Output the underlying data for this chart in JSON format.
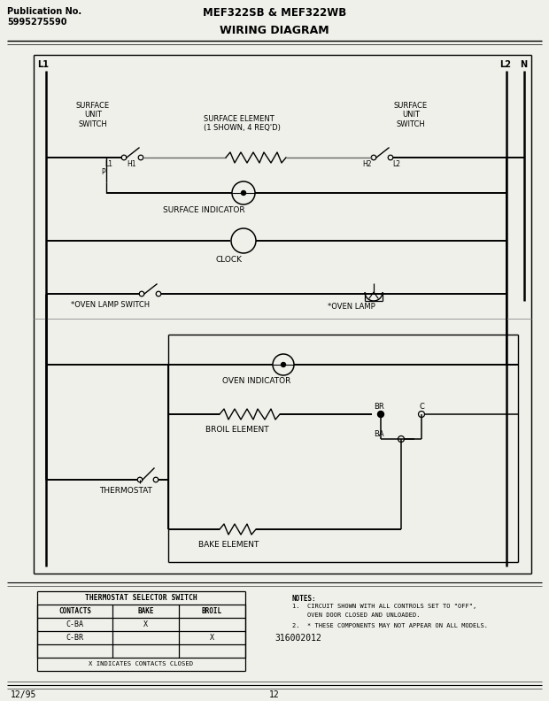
{
  "title_left": "Publication No.\n5995275590",
  "title_center": "MEF322SB & MEF322WB",
  "subtitle_center": "WIRING DIAGRAM",
  "bg_color": "#f0f0eb",
  "page_date": "12/95",
  "page_num": "12",
  "part_num": "316002012",
  "table_title": "THERMOSTAT SELECTOR SWITCH",
  "table_headers": [
    "CONTACTS",
    "BAKE",
    "BROIL"
  ],
  "table_rows": [
    [
      "C-BA",
      "X",
      ""
    ],
    [
      "C-BR",
      "",
      "X"
    ]
  ],
  "table_footer": "X INDICATES CONTACTS CLOSED",
  "notes_line1": "NOTES:",
  "notes_line2": "1.  CIRCUIT SHOWN WITH ALL CONTROLS SET TO \"OFF\",",
  "notes_line3": "    OVEN DOOR CLOSED AND UNLOADED.",
  "notes_line4": "2.  * THESE COMPONENTS MAY NOT APPEAR ON ALL MODELS."
}
